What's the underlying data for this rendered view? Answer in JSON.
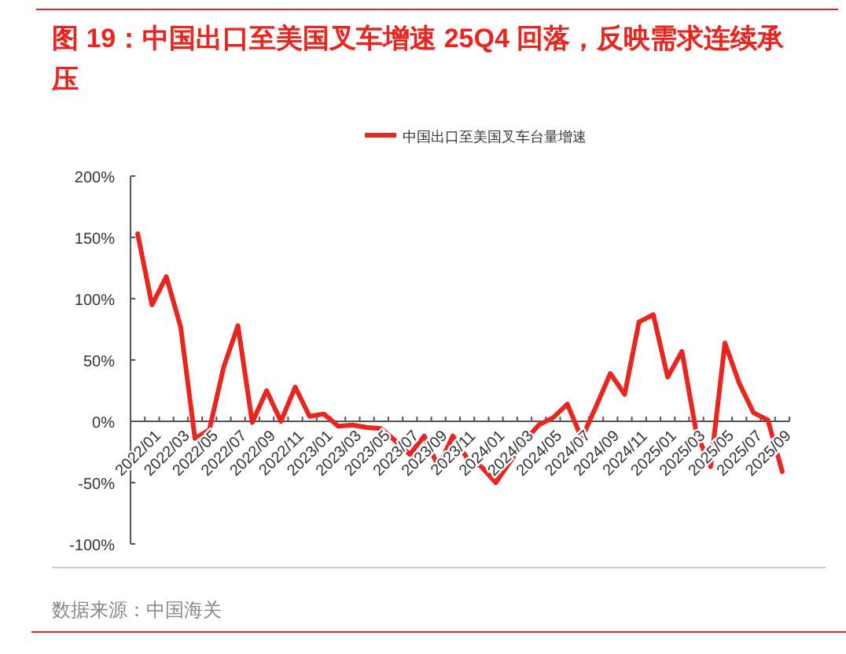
{
  "chart_data": {
    "type": "line",
    "title": "图 19：中国出口至美国叉车增速 25Q4 回落，反映需求连续承压",
    "categories": [
      "2022/01",
      null,
      "2022/03",
      null,
      "2022/05",
      null,
      "2022/07",
      null,
      "2022/09",
      null,
      "2022/11",
      null,
      "2023/01",
      null,
      "2023/03",
      null,
      "2023/05",
      null,
      "2023/07",
      null,
      "2023/09",
      null,
      "2023/11",
      null,
      "2024/01",
      null,
      "2024/03",
      null,
      "2024/05",
      null,
      "2024/07",
      null,
      "2024/09",
      null,
      "2024/11",
      null,
      "2025/01",
      null,
      "2025/03",
      null,
      "2025/05",
      null,
      "2025/07",
      null,
      "2025/09",
      null
    ],
    "series": [
      {
        "name": "中国出口至美国叉车台量增速",
        "color": "#e8251f",
        "values": [
          153,
          95,
          118,
          77,
          -14,
          -7,
          44,
          78,
          -1,
          25,
          0,
          28,
          4,
          6,
          -4,
          -3,
          -5,
          -6,
          -16,
          -27,
          -12,
          -37,
          -12,
          -30,
          -37,
          -50,
          -33,
          -16,
          -3,
          3,
          14,
          -14,
          12,
          39,
          22,
          81,
          87,
          36,
          57,
          -9,
          -37,
          64,
          31,
          7,
          1,
          -41
        ]
      }
    ],
    "ylim": [
      -100,
      200
    ],
    "yticks": [
      {
        "value": -100,
        "label": "-100%"
      },
      {
        "value": -50,
        "label": "-50%"
      },
      {
        "value": 0,
        "label": "0%"
      },
      {
        "value": 50,
        "label": "50%"
      },
      {
        "value": 100,
        "label": "100%"
      },
      {
        "value": 150,
        "label": "150%"
      },
      {
        "value": 200,
        "label": "200%"
      }
    ],
    "legend": "top",
    "grid": false,
    "annotations": [
      "数据来源：中国海关"
    ]
  }
}
